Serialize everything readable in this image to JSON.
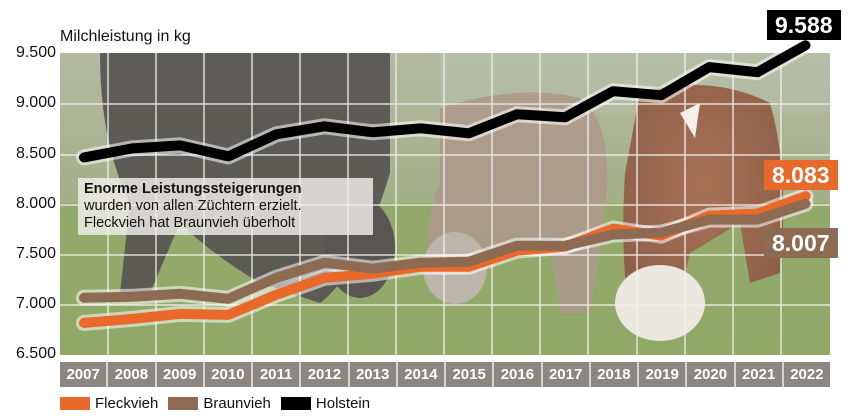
{
  "chart_data": {
    "type": "line",
    "title": "",
    "ylabel": "Milchleistung in kg",
    "xlabel": "",
    "ylim": [
      6500,
      9600
    ],
    "yticks": [
      6500,
      7000,
      7500,
      8000,
      8500,
      9000,
      9500
    ],
    "ytick_labels": [
      "6.500",
      "7.000",
      "7.500",
      "8.000",
      "8.500",
      "9.000",
      "9.500"
    ],
    "grid": true,
    "legend_position": "bottom-left",
    "categories": [
      "2007",
      "2008",
      "2009",
      "2010",
      "2011",
      "2012",
      "2013",
      "2014",
      "2015",
      "2016",
      "2017",
      "2018",
      "2019",
      "2020",
      "2021",
      "2022"
    ],
    "series": [
      {
        "name": "Fleckvieh",
        "color": "#e8692a",
        "values": [
          6820,
          6860,
          6910,
          6900,
          7100,
          7270,
          7310,
          7380,
          7380,
          7540,
          7580,
          7760,
          7690,
          7890,
          7910,
          8083
        ]
      },
      {
        "name": "Braunvieh",
        "color": "#8d6a52",
        "values": [
          7070,
          7080,
          7110,
          7060,
          7270,
          7420,
          7360,
          7420,
          7430,
          7590,
          7590,
          7700,
          7720,
          7850,
          7850,
          8007
        ]
      },
      {
        "name": "Holstein",
        "color": "#000000",
        "values": [
          8470,
          8560,
          8590,
          8480,
          8700,
          8780,
          8720,
          8760,
          8710,
          8900,
          8870,
          9130,
          9090,
          9370,
          9320,
          9588
        ]
      }
    ],
    "end_labels": [
      {
        "series": "Holstein",
        "label": "9.588",
        "bg": "#000000"
      },
      {
        "series": "Fleckvieh",
        "label": "8.083",
        "bg": "#e8692a"
      },
      {
        "series": "Braunvieh",
        "label": "8.007",
        "bg": "#8d6a52"
      }
    ],
    "annotation": {
      "headline": "Enorme Leistungssteigerungen",
      "line1": "wurden von allen Züchtern erzielt.",
      "line2": "Fleckvieh hat Braunvieh überholt"
    },
    "background": "photo of grazing cows (Holstein, Braunvieh, Fleckvieh) on pasture"
  }
}
